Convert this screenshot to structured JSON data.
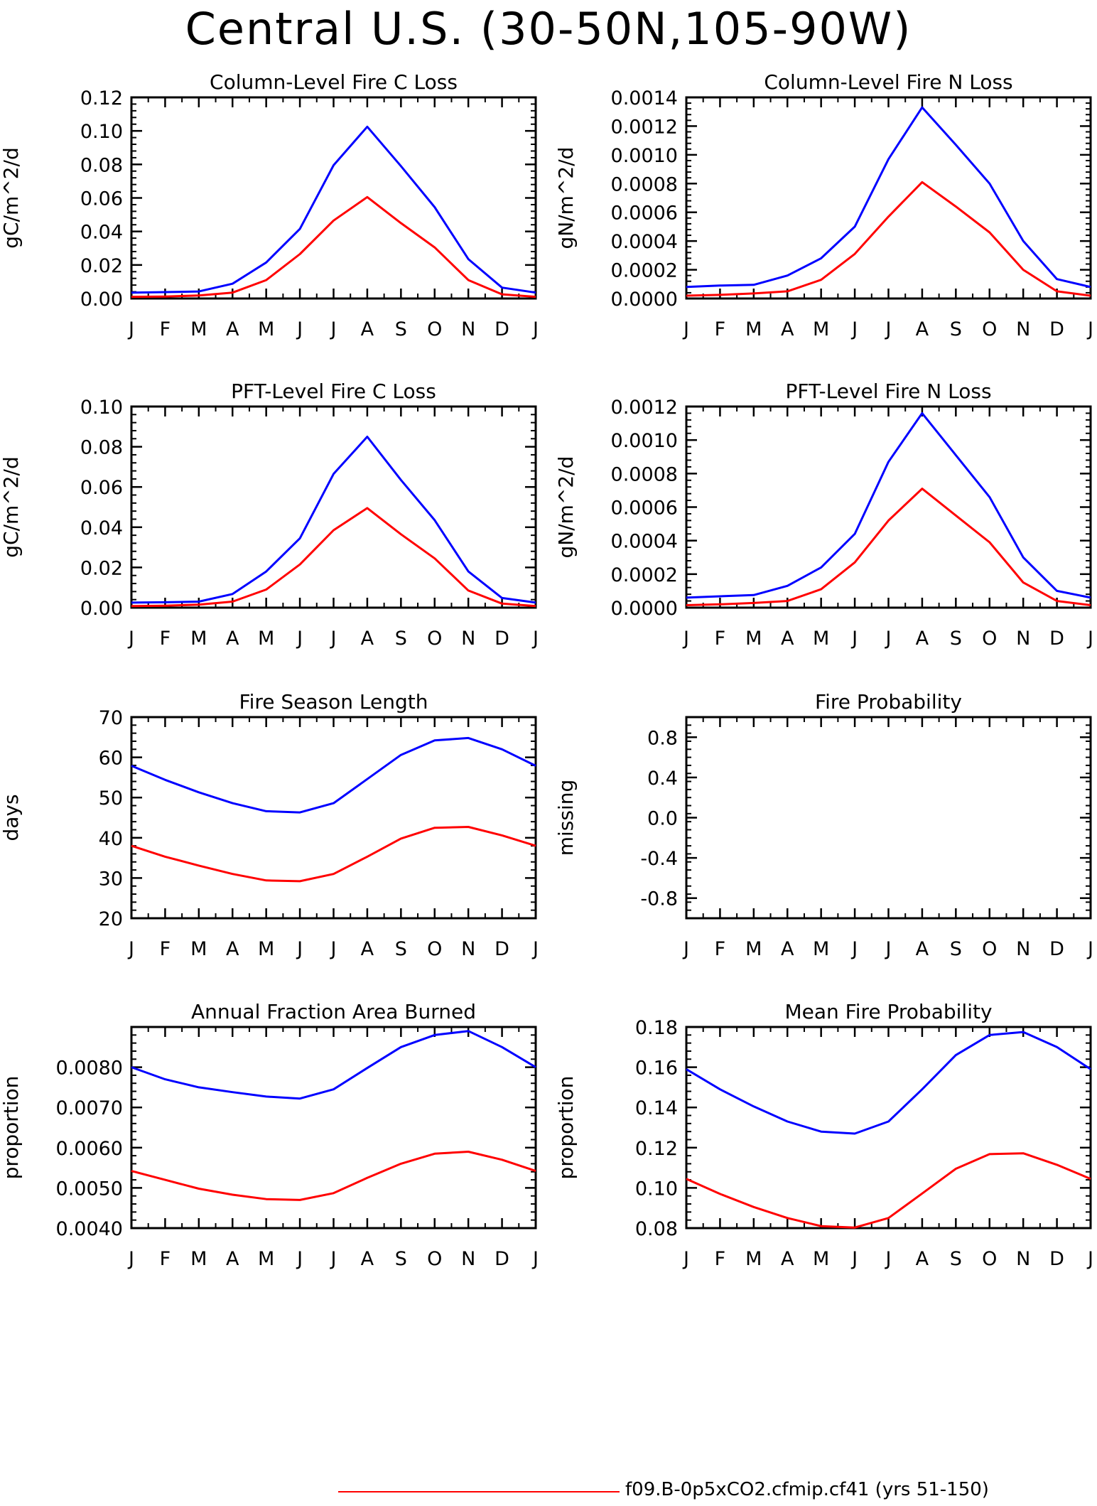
{
  "figure": {
    "title": "Central U.S. (30-50N,105-90W)"
  },
  "legend": {
    "entries": [
      {
        "label": "f09.B-0p5xCO2.cfmip.cf41 (yrs 51-150)",
        "color": "#ff0000"
      }
    ]
  },
  "colors": {
    "series_1": "#0000ff",
    "series_2": "#ff0000",
    "axes": "#000000"
  },
  "chart_data": [
    {
      "type": "line",
      "title": "Column-Level Fire C Loss",
      "ylabel": "gC/m^2/d",
      "xlabel": "",
      "categories": [
        "J",
        "F",
        "M",
        "A",
        "M",
        "J",
        "J",
        "A",
        "S",
        "O",
        "N",
        "D",
        "J"
      ],
      "ylim": [
        0,
        0.12
      ],
      "yticks": [
        "0.00",
        "0.02",
        "0.04",
        "0.06",
        "0.08",
        "0.10",
        "0.12"
      ],
      "grid": false,
      "series": [
        {
          "color": "#0000ff",
          "values": [
            0.0035,
            0.0038,
            0.0042,
            0.0088,
            0.0215,
            0.0415,
            0.0795,
            0.1025,
            0.079,
            0.0545,
            0.0235,
            0.0065,
            0.0035
          ]
        },
        {
          "color": "#ff0000",
          "values": [
            0.001,
            0.0012,
            0.0018,
            0.0035,
            0.011,
            0.0265,
            0.0465,
            0.0605,
            0.045,
            0.0305,
            0.011,
            0.0025,
            0.001
          ]
        }
      ]
    },
    {
      "type": "line",
      "title": "Column-Level Fire N Loss",
      "ylabel": "gN/m^2/d",
      "xlabel": "",
      "categories": [
        "J",
        "F",
        "M",
        "A",
        "M",
        "J",
        "J",
        "A",
        "S",
        "O",
        "N",
        "D",
        "J"
      ],
      "ylim": [
        0,
        0.0014
      ],
      "yticks": [
        "0.0000",
        "0.0002",
        "0.0004",
        "0.0006",
        "0.0008",
        "0.0010",
        "0.0012",
        "0.0014"
      ],
      "grid": false,
      "series": [
        {
          "color": "#0000ff",
          "values": [
            8e-05,
            9e-05,
            9.5e-05,
            0.00016,
            0.00028,
            0.0005,
            0.00097,
            0.00133,
            0.00107,
            0.0008,
            0.0004,
            0.000135,
            8e-05
          ]
        },
        {
          "color": "#ff0000",
          "values": [
            2e-05,
            2.5e-05,
            3.5e-05,
            5e-05,
            0.00013,
            0.00031,
            0.00057,
            0.00081,
            0.00064,
            0.00046,
            0.0002,
            5e-05,
            2e-05
          ]
        }
      ]
    },
    {
      "type": "line",
      "title": "PFT-Level Fire C Loss",
      "ylabel": "gC/m^2/d",
      "xlabel": "",
      "categories": [
        "J",
        "F",
        "M",
        "A",
        "M",
        "J",
        "J",
        "A",
        "S",
        "O",
        "N",
        "D",
        "J"
      ],
      "ylim": [
        0,
        0.1
      ],
      "yticks": [
        "0.00",
        "0.02",
        "0.04",
        "0.06",
        "0.08",
        "0.10"
      ],
      "grid": false,
      "series": [
        {
          "color": "#0000ff",
          "values": [
            0.0025,
            0.0027,
            0.003,
            0.0068,
            0.018,
            0.0345,
            0.0665,
            0.085,
            0.0635,
            0.0435,
            0.018,
            0.0048,
            0.0025
          ]
        },
        {
          "color": "#ff0000",
          "values": [
            0.0008,
            0.001,
            0.0015,
            0.003,
            0.009,
            0.0215,
            0.0385,
            0.0495,
            0.0365,
            0.0245,
            0.0085,
            0.002,
            0.0008
          ]
        }
      ]
    },
    {
      "type": "line",
      "title": "PFT-Level Fire N Loss",
      "ylabel": "gN/m^2/d",
      "xlabel": "",
      "categories": [
        "J",
        "F",
        "M",
        "A",
        "M",
        "J",
        "J",
        "A",
        "S",
        "O",
        "N",
        "D",
        "J"
      ],
      "ylim": [
        0,
        0.0012
      ],
      "yticks": [
        "0.0000",
        "0.0002",
        "0.0004",
        "0.0006",
        "0.0008",
        "0.0010",
        "0.0012"
      ],
      "grid": false,
      "series": [
        {
          "color": "#0000ff",
          "values": [
            6e-05,
            6.8e-05,
            7.5e-05,
            0.00013,
            0.00024,
            0.00044,
            0.00087,
            0.00116,
            0.00091,
            0.00066,
            0.0003,
            0.0001,
            6e-05
          ]
        },
        {
          "color": "#ff0000",
          "values": [
            1.5e-05,
            2e-05,
            2.8e-05,
            4e-05,
            0.00011,
            0.00027,
            0.00052,
            0.00071,
            0.00055,
            0.00039,
            0.00015,
            4e-05,
            1.5e-05
          ]
        }
      ]
    },
    {
      "type": "line",
      "title": "Fire Season Length",
      "ylabel": "days",
      "xlabel": "",
      "categories": [
        "J",
        "F",
        "M",
        "A",
        "M",
        "J",
        "J",
        "A",
        "S",
        "O",
        "N",
        "D",
        "J"
      ],
      "ylim": [
        20,
        70
      ],
      "yticks": [
        "20",
        "30",
        "40",
        "50",
        "60",
        "70"
      ],
      "grid": false,
      "series": [
        {
          "color": "#0000ff",
          "values": [
            57.9,
            54.4,
            51.3,
            48.6,
            46.6,
            46.3,
            48.6,
            54.6,
            60.6,
            64.2,
            64.8,
            62,
            57.9
          ]
        },
        {
          "color": "#ff0000",
          "values": [
            38,
            35.3,
            33.1,
            31,
            29.4,
            29.2,
            31,
            35.3,
            39.8,
            42.5,
            42.7,
            40.6,
            38
          ]
        }
      ]
    },
    {
      "type": "line",
      "title": "Fire Probability",
      "ylabel": "missing",
      "xlabel": "",
      "categories": [
        "J",
        "F",
        "M",
        "A",
        "M",
        "J",
        "J",
        "A",
        "S",
        "O",
        "N",
        "D",
        "J"
      ],
      "ylim": [
        -1.0,
        1.0
      ],
      "yticks": [
        "-0.8",
        "-0.4",
        "0.0",
        "0.4",
        "0.8"
      ],
      "ytick_values": [
        -0.8,
        -0.4,
        0.0,
        0.4,
        0.8
      ],
      "grid": false,
      "series": []
    },
    {
      "type": "line",
      "title": "Annual Fraction Area Burned",
      "ylabel": "proportion",
      "xlabel": "",
      "categories": [
        "J",
        "F",
        "M",
        "A",
        "M",
        "J",
        "J",
        "A",
        "S",
        "O",
        "N",
        "D",
        "J"
      ],
      "ylim": [
        0.004,
        0.009
      ],
      "yticks": [
        "0.0040",
        "0.0050",
        "0.0060",
        "0.0070",
        "0.0080"
      ],
      "grid": false,
      "series": [
        {
          "color": "#0000ff",
          "values": [
            0.008,
            0.0077,
            0.0075,
            0.00738,
            0.00727,
            0.00722,
            0.00745,
            0.00798,
            0.0085,
            0.0088,
            0.0089,
            0.0085,
            0.008
          ]
        },
        {
          "color": "#ff0000",
          "values": [
            0.00542,
            0.0052,
            0.00498,
            0.00483,
            0.00472,
            0.0047,
            0.00487,
            0.00525,
            0.0056,
            0.00585,
            0.0059,
            0.0057,
            0.00542
          ]
        }
      ]
    },
    {
      "type": "line",
      "title": "Mean Fire Probability",
      "ylabel": "proportion",
      "xlabel": "",
      "categories": [
        "J",
        "F",
        "M",
        "A",
        "M",
        "J",
        "J",
        "A",
        "S",
        "O",
        "N",
        "D",
        "J"
      ],
      "ylim": [
        0.08,
        0.18
      ],
      "yticks": [
        "0.08",
        "0.10",
        "0.12",
        "0.14",
        "0.16",
        "0.18"
      ],
      "grid": false,
      "series": [
        {
          "color": "#0000ff",
          "values": [
            0.159,
            0.149,
            0.1405,
            0.133,
            0.128,
            0.127,
            0.133,
            0.149,
            0.166,
            0.176,
            0.1775,
            0.17,
            0.159
          ]
        },
        {
          "color": "#ff0000",
          "values": [
            0.1045,
            0.097,
            0.0905,
            0.085,
            0.081,
            0.0803,
            0.085,
            0.0972,
            0.1095,
            0.1168,
            0.1172,
            0.1115,
            0.1045
          ]
        }
      ]
    }
  ]
}
